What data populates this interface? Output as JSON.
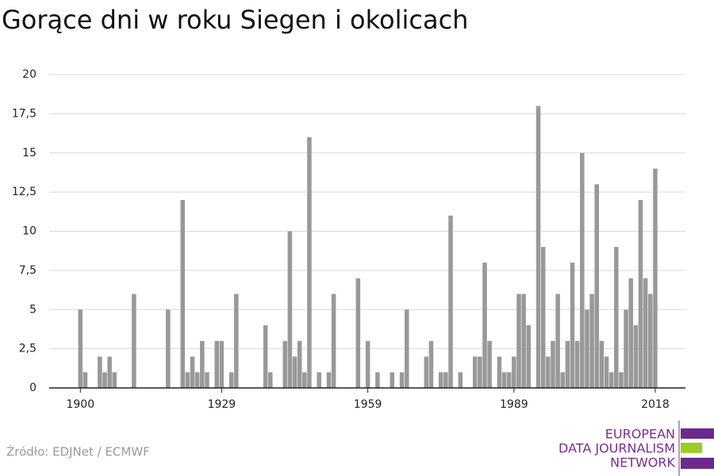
{
  "chart_data": {
    "type": "bar",
    "title": "Gorące dni w roku Siegen i okolicach",
    "source": "Źródło: EDJNet / ECMWF",
    "logo": [
      "EUROPEAN",
      "DATA JOURNALISM",
      "NETWORK"
    ],
    "color": "#999999",
    "x": [
      1900,
      1901,
      1902,
      1903,
      1904,
      1905,
      1906,
      1907,
      1908,
      1909,
      1910,
      1911,
      1912,
      1913,
      1914,
      1915,
      1916,
      1917,
      1918,
      1919,
      1920,
      1921,
      1922,
      1923,
      1924,
      1925,
      1926,
      1927,
      1928,
      1929,
      1930,
      1931,
      1932,
      1933,
      1934,
      1935,
      1936,
      1937,
      1938,
      1939,
      1940,
      1941,
      1942,
      1943,
      1944,
      1945,
      1946,
      1947,
      1948,
      1949,
      1950,
      1951,
      1952,
      1953,
      1954,
      1955,
      1956,
      1957,
      1958,
      1959,
      1960,
      1961,
      1962,
      1963,
      1964,
      1965,
      1966,
      1967,
      1968,
      1969,
      1970,
      1971,
      1972,
      1973,
      1974,
      1975,
      1976,
      1977,
      1978,
      1979,
      1980,
      1981,
      1982,
      1983,
      1984,
      1985,
      1986,
      1987,
      1988,
      1989,
      1990,
      1991,
      1992,
      1993,
      1994,
      1995,
      1996,
      1997,
      1998,
      1999,
      2000,
      2001,
      2002,
      2003,
      2004,
      2005,
      2006,
      2007,
      2008,
      2009,
      2010,
      2011,
      2012,
      2013,
      2014,
      2015,
      2016,
      2017,
      2018
    ],
    "values": [
      5,
      1,
      0,
      0,
      2,
      1,
      2,
      1,
      0,
      0,
      0,
      6,
      0,
      0,
      0,
      0,
      0,
      0,
      5,
      0,
      0,
      12,
      1,
      2,
      1,
      3,
      1,
      0,
      3,
      3,
      0,
      1,
      6,
      0,
      0,
      0,
      0,
      0,
      4,
      1,
      0,
      0,
      3,
      10,
      2,
      3,
      1,
      16,
      0,
      1,
      0,
      1,
      6,
      0,
      0,
      0,
      0,
      7,
      0,
      3,
      0,
      1,
      0,
      0,
      1,
      0,
      1,
      5,
      0,
      0,
      0,
      2,
      3,
      0,
      1,
      1,
      11,
      0,
      1,
      0,
      0,
      2,
      2,
      8,
      3,
      0,
      2,
      1,
      1,
      2,
      6,
      6,
      4,
      0,
      18,
      9,
      2,
      3,
      6,
      1,
      3,
      8,
      3,
      15,
      5,
      6,
      13,
      3,
      2,
      1,
      9,
      1,
      5,
      7,
      4,
      12,
      7,
      6,
      14
    ],
    "xlim": [
      1893.6,
      2024.2
    ],
    "xticks": [
      1900,
      1929,
      1959,
      1989,
      2018
    ],
    "ylim": [
      0,
      20
    ],
    "yticks": [
      0,
      {
        "value": 2.5,
        "label": "2,5"
      },
      5,
      {
        "value": 7.5,
        "label": "7,5"
      },
      10,
      {
        "value": 12.5,
        "label": "12,5"
      },
      15,
      {
        "value": 17.5,
        "label": "17,5"
      },
      20
    ],
    "grid": true
  }
}
